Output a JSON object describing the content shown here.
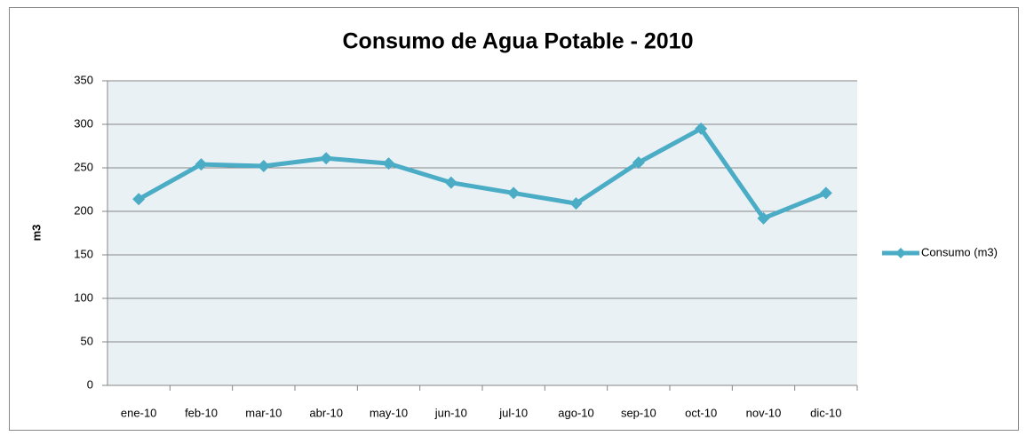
{
  "chart_data": {
    "type": "line",
    "title": "Consumo de Agua Potable - 2010",
    "y_label": "m3",
    "categories": [
      "ene-10",
      "feb-10",
      "mar-10",
      "abr-10",
      "may-10",
      "jun-10",
      "jul-10",
      "ago-10",
      "sep-10",
      "oct-10",
      "nov-10",
      "dic-10"
    ],
    "series": [
      {
        "name": "Consumo (m3)",
        "color": "#4bacc6",
        "values": [
          214,
          254,
          252,
          261,
          255,
          233,
          221,
          209,
          256,
          295,
          192,
          221
        ]
      }
    ],
    "ylim": [
      0,
      350
    ],
    "yticks": [
      0,
      50,
      100,
      150,
      200,
      250,
      300,
      350
    ],
    "grid": true,
    "legend": "right"
  }
}
